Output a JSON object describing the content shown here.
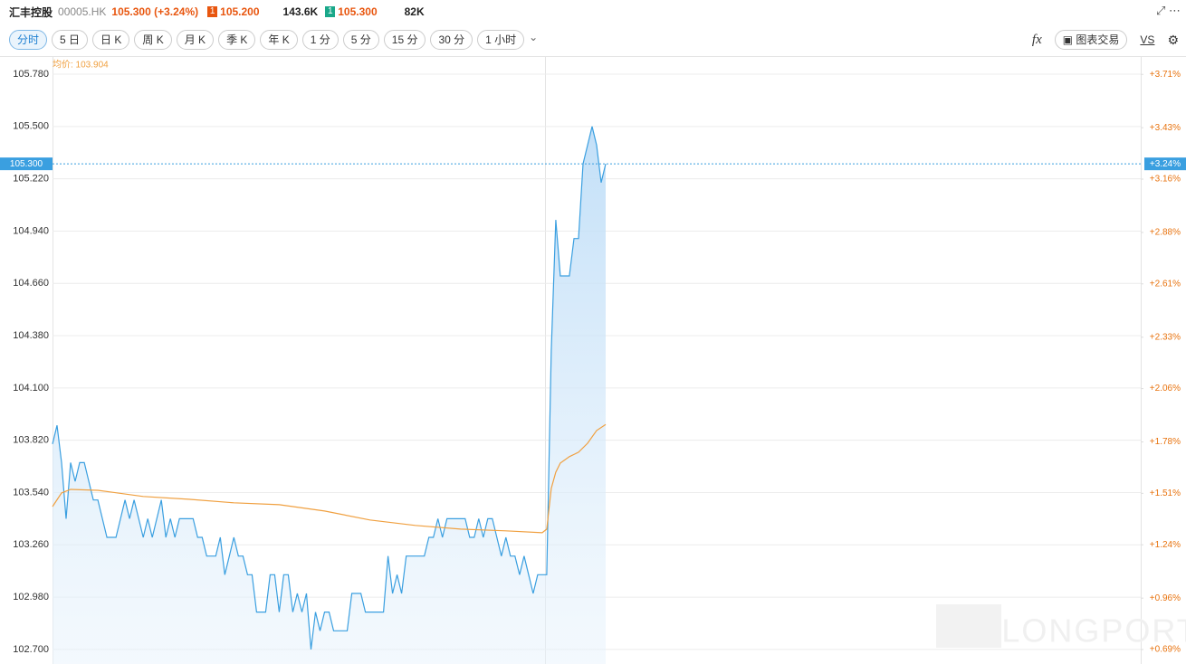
{
  "header": {
    "name": "汇丰控股",
    "code": "00005.HK",
    "price": "105.300 (+3.24%)",
    "bid_count": "1",
    "bid": "105.200",
    "bid_vol": "143.6K",
    "ask_count": "1",
    "ask": "105.300",
    "ask_vol": "82K"
  },
  "toolbar": {
    "tabs": [
      "分时",
      "5 日",
      "日 K",
      "周 K",
      "月 K",
      "季 K",
      "年 K",
      "1 分",
      "5 分",
      "15 分",
      "30 分",
      "1 小时"
    ],
    "fx": "fx",
    "trade": "图表交易",
    "vs": "VS"
  },
  "watermark": "LONGPORT",
  "chart_data": {
    "type": "line",
    "avg_label": "均价: 103.904",
    "xlim": [
      0,
      240
    ],
    "ylim": [
      102.622,
      105.877
    ],
    "yticks": [
      {
        "value": 105.78,
        "label": "105.780"
      },
      {
        "value": 105.5,
        "label": "105.500"
      },
      {
        "value": 105.22,
        "label": "105.220"
      },
      {
        "value": 104.94,
        "label": "104.940"
      },
      {
        "value": 104.66,
        "label": "104.660"
      },
      {
        "value": 104.38,
        "label": "104.380"
      },
      {
        "value": 104.1,
        "label": "104.100"
      },
      {
        "value": 103.82,
        "label": "103.820"
      },
      {
        "value": 103.54,
        "label": "103.540"
      },
      {
        "value": 103.26,
        "label": "103.260"
      },
      {
        "value": 102.98,
        "label": "102.980"
      },
      {
        "value": 102.7,
        "label": "102.700"
      }
    ],
    "y2lim": [
      0.614,
      3.806
    ],
    "y2ticks": [
      {
        "value": 3.71,
        "label": "+3.71%"
      },
      {
        "value": 3.43,
        "label": "+3.43%"
      },
      {
        "value": 3.16,
        "label": "+3.16%"
      },
      {
        "value": 2.88,
        "label": "+2.88%"
      },
      {
        "value": 2.61,
        "label": "+2.61%"
      },
      {
        "value": 2.33,
        "label": "+2.33%"
      },
      {
        "value": 2.06,
        "label": "+2.06%"
      },
      {
        "value": 1.78,
        "label": "+1.78%"
      },
      {
        "value": 1.51,
        "label": "+1.51%"
      },
      {
        "value": 1.24,
        "label": "+1.24%"
      },
      {
        "value": 0.96,
        "label": "+0.96%"
      },
      {
        "value": 0.69,
        "label": "+0.69%"
      }
    ],
    "last_price": {
      "value": 105.3,
      "label": "105.300"
    },
    "last_change": {
      "value": 3.24,
      "label": "+3.24%"
    },
    "grid": true,
    "series": [
      {
        "color": "#3a9fe0",
        "values": [
          103.8,
          103.9,
          103.7,
          103.4,
          103.7,
          103.6,
          103.7,
          103.7,
          103.6,
          103.5,
          103.5,
          103.4,
          103.3,
          103.3,
          103.3,
          103.4,
          103.5,
          103.4,
          103.5,
          103.4,
          103.3,
          103.4,
          103.3,
          103.4,
          103.5,
          103.3,
          103.4,
          103.3,
          103.4,
          103.4,
          103.4,
          103.4,
          103.3,
          103.3,
          103.2,
          103.2,
          103.2,
          103.3,
          103.1,
          103.2,
          103.3,
          103.2,
          103.2,
          103.1,
          103.1,
          102.9,
          102.9,
          102.9,
          103.1,
          103.1,
          102.9,
          103.1,
          103.1,
          102.9,
          103.0,
          102.9,
          103.0,
          102.7,
          102.9,
          102.8,
          102.9,
          102.9,
          102.8,
          102.8,
          102.8,
          102.8,
          103.0,
          103.0,
          103.0,
          102.9,
          102.9,
          102.9,
          102.9,
          102.9,
          103.2,
          103.0,
          103.1,
          103.0,
          103.2,
          103.2,
          103.2,
          103.2,
          103.2,
          103.3,
          103.3,
          103.4,
          103.3,
          103.4,
          103.4,
          103.4,
          103.4,
          103.4,
          103.3,
          103.3,
          103.4,
          103.3,
          103.4,
          103.4,
          103.3,
          103.2,
          103.3,
          103.2,
          103.2,
          103.1,
          103.2,
          103.1,
          103.0,
          103.1,
          103.1,
          103.1,
          104.3,
          105.0,
          104.7,
          104.7,
          104.7,
          104.9,
          104.9,
          105.3,
          105.4,
          105.5,
          105.4,
          105.2,
          105.3
        ]
      },
      {
        "color": "#f0a040",
        "x": [
          0,
          2,
          4,
          10,
          20,
          30,
          40,
          50,
          60,
          70,
          80,
          90,
          100,
          108,
          109,
          110,
          111,
          112,
          114,
          116,
          118,
          120,
          122
        ],
        "values": [
          103.465,
          103.538,
          103.557,
          103.552,
          103.519,
          103.504,
          103.485,
          103.475,
          103.441,
          103.393,
          103.364,
          103.344,
          103.335,
          103.325,
          103.344,
          103.562,
          103.649,
          103.698,
          103.732,
          103.756,
          103.804,
          103.872,
          103.904
        ]
      }
    ]
  }
}
